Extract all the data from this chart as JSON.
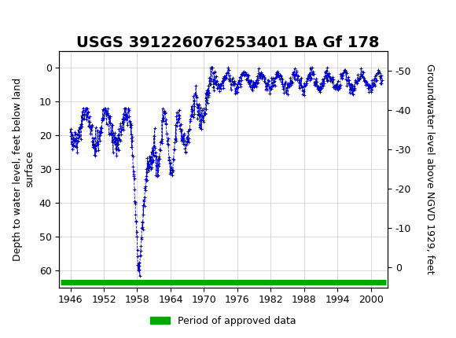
{
  "title": "USGS 391226076253401 BA Gf 178",
  "ylabel_left": "Depth to water level, feet below land\nsurface",
  "ylabel_right": "Groundwater level above NGVD 1929, feet",
  "header_color": "#1a6b3c",
  "plot_bg": "#ffffff",
  "grid_color": "#cccccc",
  "data_color": "#0000cc",
  "approved_color": "#00aa00",
  "xlim": [
    1944,
    2003
  ],
  "ylim_left": [
    65,
    -5
  ],
  "ylim_right": [
    5,
    -55
  ],
  "xticks": [
    1946,
    1952,
    1958,
    1964,
    1970,
    1976,
    1982,
    1988,
    1994,
    2000
  ],
  "yticks_left": [
    0,
    10,
    20,
    30,
    40,
    50,
    60
  ],
  "yticks_right": [
    0,
    -10,
    -20,
    -30,
    -40,
    -50
  ],
  "legend_label": "Period of approved data",
  "title_fontsize": 14,
  "axis_fontsize": 9,
  "tick_fontsize": 9
}
